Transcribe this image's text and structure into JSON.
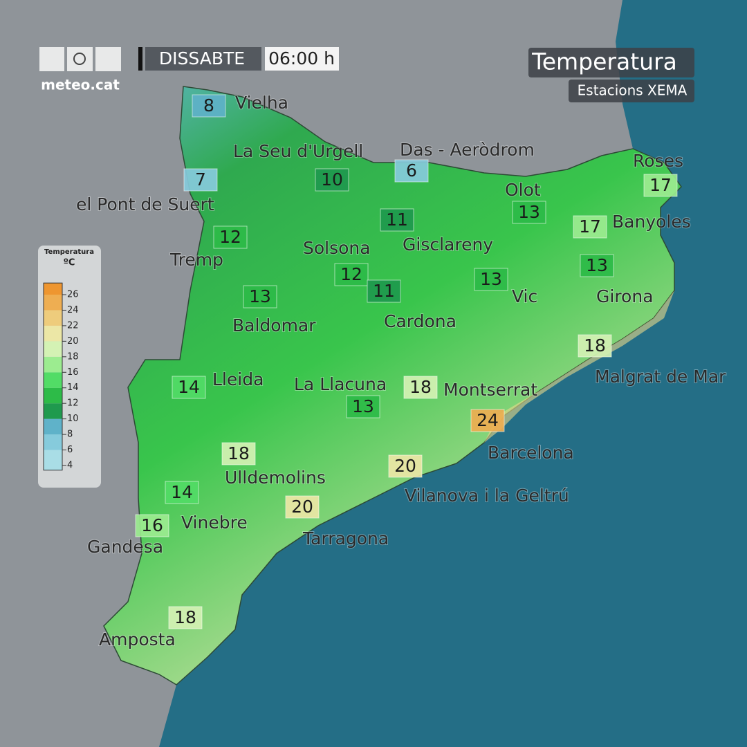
{
  "header": {
    "logo": "meteo.cat",
    "day": "DISSABTE",
    "time": "06:00 h",
    "title": "Temperatura",
    "subtitle": "Estacions XEMA"
  },
  "legend": {
    "title": "Temperatura",
    "unit": "ºC",
    "ticks": [
      4,
      6,
      8,
      10,
      12,
      14,
      16,
      18,
      20,
      22,
      24,
      26
    ],
    "colors": [
      "#a9dde6",
      "#86cbdc",
      "#5fb2c9",
      "#1f9a4e",
      "#2dbb48",
      "#52dc66",
      "#9cec90",
      "#d4f2b4",
      "#ece7a6",
      "#eecc7c",
      "#eeae52",
      "#ee9630"
    ]
  },
  "places": [
    "Vielha",
    "La Seu d'Urgell",
    "Das - Aeròdrom",
    "Roses",
    "Olot",
    "el Pont de Suert",
    "Banyoles",
    "Solsona",
    "Gisclareny",
    "Tremp",
    "Vic",
    "Girona",
    "Cardona",
    "Baldomar",
    "Malgrat de Mar",
    "Lleida",
    "La Llacuna",
    "Montserrat",
    "Barcelona",
    "Ulldemolins",
    "Vilanova i la Geltrú",
    "Vinebre",
    "Tarragona",
    "Gandesa",
    "Amposta"
  ],
  "readings": [
    8,
    7,
    10,
    6,
    11,
    13,
    17,
    17,
    12,
    12,
    11,
    13,
    13,
    13,
    18,
    14,
    18,
    13,
    24,
    18,
    20,
    14,
    20,
    16,
    18
  ]
}
